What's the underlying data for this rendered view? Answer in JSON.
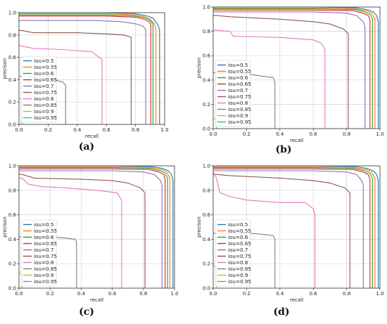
{
  "chart_data": [
    {
      "type": "line",
      "caption": "(a)",
      "xlabel": "recall",
      "ylabel": "precison",
      "xlim": [
        0,
        1
      ],
      "ylim": [
        0,
        1
      ],
      "grid": true,
      "legend": "lower-left",
      "x_ticks": [
        "0.0",
        "0.2",
        "0.4",
        "0.6",
        "0.8",
        "1.0"
      ],
      "y_ticks": [
        "0.0",
        "0.2",
        "0.4",
        "0.6",
        "0.8",
        "1.0"
      ],
      "series": [
        {
          "name": "iou=0.5",
          "color": "#1f77b4",
          "x": [
            0,
            0.02,
            0.6,
            0.8,
            0.88,
            0.92,
            0.95,
            0.965,
            0.965
          ],
          "y": [
            1.0,
            1.0,
            1.0,
            0.99,
            0.97,
            0.95,
            0.9,
            0.85,
            0
          ]
        },
        {
          "name": "iou=0.55",
          "color": "#ff7f0e",
          "x": [
            0,
            0.02,
            0.6,
            0.8,
            0.87,
            0.9,
            0.93,
            0.94,
            0.94
          ],
          "y": [
            0.99,
            0.99,
            0.99,
            0.98,
            0.96,
            0.94,
            0.9,
            0.85,
            0
          ]
        },
        {
          "name": "iou=0.6",
          "color": "#2ca02c",
          "x": [
            0,
            0.02,
            0.6,
            0.8,
            0.87,
            0.9,
            0.92,
            0.92
          ],
          "y": [
            0.98,
            0.98,
            0.98,
            0.97,
            0.95,
            0.93,
            0.9,
            0
          ]
        },
        {
          "name": "iou=0.65",
          "color": "#d62728",
          "x": [
            0,
            0.02,
            0.6,
            0.8,
            0.86,
            0.89,
            0.905,
            0.905
          ],
          "y": [
            0.97,
            0.97,
            0.97,
            0.96,
            0.94,
            0.92,
            0.9,
            0
          ]
        },
        {
          "name": "iou=0.7",
          "color": "#9467bd",
          "x": [
            0,
            0.02,
            0.5,
            0.7,
            0.8,
            0.85,
            0.87,
            0.87
          ],
          "y": [
            0.93,
            0.93,
            0.93,
            0.92,
            0.9,
            0.88,
            0.85,
            0
          ]
        },
        {
          "name": "iou=0.75",
          "color": "#8c564b",
          "x": [
            0,
            0.02,
            0.1,
            0.4,
            0.6,
            0.72,
            0.77,
            0.77
          ],
          "y": [
            0.84,
            0.84,
            0.82,
            0.82,
            0.81,
            0.8,
            0.78,
            0
          ]
        },
        {
          "name": "iou=0.8",
          "color": "#e377c2",
          "x": [
            0,
            0.02,
            0.1,
            0.3,
            0.5,
            0.57,
            0.57
          ],
          "y": [
            0.71,
            0.7,
            0.68,
            0.67,
            0.65,
            0.58,
            0
          ]
        },
        {
          "name": "iou=0.85",
          "color": "#7f7f7f",
          "x": [
            0,
            0.18,
            0.3,
            0.32,
            0.32
          ],
          "y": [
            0.43,
            0.42,
            0.38,
            0.35,
            0
          ]
        },
        {
          "name": "iou=0.9",
          "color": "#bcbd22",
          "x": [
            0,
            0.02,
            0.02
          ],
          "y": [
            0.23,
            0.23,
            0
          ]
        },
        {
          "name": "iou=0.95",
          "color": "#17becf",
          "x": [],
          "y": []
        }
      ]
    },
    {
      "type": "line",
      "caption": "(b)",
      "xlabel": "recall",
      "ylabel": "precison",
      "xlim": [
        0,
        1
      ],
      "ylim": [
        0,
        1
      ],
      "grid": true,
      "legend": "lower-left",
      "x_ticks": [
        "0.0",
        "0.2",
        "0.4",
        "0.6",
        "0.8",
        "1.0"
      ],
      "y_ticks": [
        "0.0",
        "0.2",
        "0.4",
        "0.6",
        "0.8",
        "1.0"
      ],
      "series": [
        {
          "name": "iou=0.5",
          "color": "#1f77b4",
          "x": [
            0,
            0.02,
            0.6,
            0.85,
            0.92,
            0.96,
            0.98,
            0.99,
            0.99
          ],
          "y": [
            1.0,
            1.0,
            1.0,
            0.995,
            0.98,
            0.96,
            0.93,
            0.88,
            0
          ]
        },
        {
          "name": "iou=0.55",
          "color": "#ff7f0e",
          "x": [
            0,
            0.02,
            0.6,
            0.85,
            0.92,
            0.95,
            0.97,
            0.97
          ],
          "y": [
            0.99,
            0.99,
            0.99,
            0.985,
            0.97,
            0.95,
            0.9,
            0
          ]
        },
        {
          "name": "iou=0.6",
          "color": "#2ca02c",
          "x": [
            0,
            0.02,
            0.6,
            0.85,
            0.91,
            0.94,
            0.955,
            0.955
          ],
          "y": [
            0.985,
            0.985,
            0.985,
            0.98,
            0.96,
            0.94,
            0.9,
            0
          ]
        },
        {
          "name": "iou=0.65",
          "color": "#d62728",
          "x": [
            0,
            0.02,
            0.6,
            0.84,
            0.9,
            0.93,
            0.94,
            0.94
          ],
          "y": [
            0.975,
            0.975,
            0.975,
            0.97,
            0.95,
            0.93,
            0.89,
            0
          ]
        },
        {
          "name": "iou=0.7",
          "color": "#9467bd",
          "x": [
            0,
            0.02,
            0.6,
            0.8,
            0.86,
            0.9,
            0.91,
            0.91
          ],
          "y": [
            0.96,
            0.96,
            0.96,
            0.95,
            0.93,
            0.88,
            0.84,
            0
          ]
        },
        {
          "name": "iou=0.75",
          "color": "#8c564b",
          "x": [
            0,
            0.02,
            0.1,
            0.4,
            0.6,
            0.7,
            0.78,
            0.81,
            0.81
          ],
          "y": [
            0.93,
            0.93,
            0.92,
            0.9,
            0.88,
            0.86,
            0.82,
            0.78,
            0
          ]
        },
        {
          "name": "iou=0.8",
          "color": "#e377c2",
          "x": [
            0,
            0.02,
            0.1,
            0.12,
            0.4,
            0.6,
            0.65,
            0.67,
            0.67
          ],
          "y": [
            0.81,
            0.81,
            0.8,
            0.76,
            0.75,
            0.73,
            0.7,
            0.65,
            0
          ]
        },
        {
          "name": "iou=0.85",
          "color": "#7f7f7f",
          "x": [
            0,
            0.2,
            0.3,
            0.36,
            0.37,
            0.37
          ],
          "y": [
            0.46,
            0.45,
            0.43,
            0.42,
            0.38,
            0
          ]
        },
        {
          "name": "iou=0.9",
          "color": "#bcbd22",
          "x": [
            0,
            0.02,
            0.02
          ],
          "y": [
            0.08,
            0.08,
            0
          ]
        },
        {
          "name": "iou=0.95",
          "color": "#17becf",
          "x": [],
          "y": []
        }
      ]
    },
    {
      "type": "line",
      "caption": "(c)",
      "xlabel": "recall",
      "ylabel": "precison",
      "xlim": [
        0,
        1
      ],
      "ylim": [
        0,
        1
      ],
      "grid": true,
      "legend": "lower-left",
      "x_ticks": [
        "0.0",
        "0.2",
        "0.4",
        "0.6",
        "0.8",
        "1.0"
      ],
      "y_ticks": [
        "0.0",
        "0.2",
        "0.4",
        "0.6",
        "0.8",
        "1.0"
      ],
      "series": [
        {
          "name": "iou=0.5",
          "color": "#1f77b4",
          "x": [
            0,
            0.02,
            0.6,
            0.85,
            0.92,
            0.96,
            0.98,
            0.99,
            0.99
          ],
          "y": [
            1.0,
            1.0,
            1.0,
            0.995,
            0.98,
            0.96,
            0.93,
            0.88,
            0
          ]
        },
        {
          "name": "iou=0.55",
          "color": "#ff7f0e",
          "x": [
            0,
            0.02,
            0.6,
            0.85,
            0.92,
            0.95,
            0.97,
            0.97
          ],
          "y": [
            0.99,
            0.99,
            0.99,
            0.985,
            0.97,
            0.95,
            0.9,
            0
          ]
        },
        {
          "name": "iou=0.6",
          "color": "#2ca02c",
          "x": [
            0,
            0.02,
            0.6,
            0.84,
            0.91,
            0.94,
            0.955,
            0.955
          ],
          "y": [
            0.985,
            0.985,
            0.985,
            0.98,
            0.96,
            0.94,
            0.9,
            0
          ]
        },
        {
          "name": "iou=0.65",
          "color": "#d62728",
          "x": [
            0,
            0.02,
            0.6,
            0.84,
            0.9,
            0.93,
            0.94,
            0.94
          ],
          "y": [
            0.975,
            0.975,
            0.975,
            0.97,
            0.95,
            0.93,
            0.89,
            0
          ]
        },
        {
          "name": "iou=0.7",
          "color": "#9467bd",
          "x": [
            0,
            0.02,
            0.6,
            0.8,
            0.87,
            0.91,
            0.92,
            0.92
          ],
          "y": [
            0.96,
            0.96,
            0.96,
            0.95,
            0.93,
            0.88,
            0.84,
            0
          ]
        },
        {
          "name": "iou=0.75",
          "color": "#8c564b",
          "x": [
            0,
            0.02,
            0.1,
            0.4,
            0.6,
            0.7,
            0.78,
            0.81,
            0.81
          ],
          "y": [
            0.93,
            0.93,
            0.9,
            0.89,
            0.88,
            0.86,
            0.82,
            0.78,
            0
          ]
        },
        {
          "name": "iou=0.8",
          "color": "#e377c2",
          "x": [
            0,
            0.02,
            0.06,
            0.15,
            0.3,
            0.5,
            0.63,
            0.66,
            0.66
          ],
          "y": [
            0.9,
            0.9,
            0.85,
            0.83,
            0.82,
            0.8,
            0.78,
            0.72,
            0
          ]
        },
        {
          "name": "iou=0.85",
          "color": "#7f7f7f",
          "x": [
            0,
            0.2,
            0.3,
            0.36,
            0.37,
            0.37
          ],
          "y": [
            0.42,
            0.42,
            0.41,
            0.4,
            0.38,
            0
          ]
        },
        {
          "name": "iou=0.9",
          "color": "#bcbd22",
          "x": [
            0,
            0.02,
            0.02
          ],
          "y": [
            0.12,
            0.12,
            0
          ]
        },
        {
          "name": "iou=0.95",
          "color": "#17becf",
          "x": [],
          "y": []
        }
      ]
    },
    {
      "type": "line",
      "caption": "(d)",
      "xlabel": "recall",
      "ylabel": "precison",
      "xlim": [
        0,
        1
      ],
      "ylim": [
        0,
        1
      ],
      "grid": true,
      "legend": "lower-left",
      "x_ticks": [
        "0.0",
        "0.2",
        "0.4",
        "0.6",
        "0.8",
        "1.0"
      ],
      "y_ticks": [
        "0.0",
        "0.2",
        "0.4",
        "0.6",
        "0.8",
        "1.0"
      ],
      "series": [
        {
          "name": "iou=0.5",
          "color": "#1f77b4",
          "x": [
            0,
            0.02,
            0.6,
            0.85,
            0.92,
            0.96,
            0.98,
            0.99,
            0.99
          ],
          "y": [
            1.0,
            1.0,
            1.0,
            0.995,
            0.98,
            0.96,
            0.93,
            0.88,
            0
          ]
        },
        {
          "name": "iou=0.55",
          "color": "#ff7f0e",
          "x": [
            0,
            0.02,
            0.6,
            0.85,
            0.92,
            0.95,
            0.97,
            0.97
          ],
          "y": [
            0.99,
            0.99,
            0.99,
            0.985,
            0.97,
            0.95,
            0.9,
            0
          ]
        },
        {
          "name": "iou=0.6",
          "color": "#2ca02c",
          "x": [
            0,
            0.02,
            0.6,
            0.84,
            0.91,
            0.94,
            0.955,
            0.955
          ],
          "y": [
            0.985,
            0.985,
            0.985,
            0.98,
            0.96,
            0.94,
            0.9,
            0
          ]
        },
        {
          "name": "iou=0.65",
          "color": "#d62728",
          "x": [
            0,
            0.02,
            0.6,
            0.84,
            0.9,
            0.93,
            0.94,
            0.94
          ],
          "y": [
            0.975,
            0.975,
            0.975,
            0.97,
            0.95,
            0.93,
            0.89,
            0
          ]
        },
        {
          "name": "iou=0.7",
          "color": "#9467bd",
          "x": [
            0,
            0.02,
            0.6,
            0.8,
            0.86,
            0.89,
            0.9,
            0.9
          ],
          "y": [
            0.96,
            0.96,
            0.96,
            0.95,
            0.93,
            0.88,
            0.84,
            0
          ]
        },
        {
          "name": "iou=0.75",
          "color": "#8c564b",
          "x": [
            0,
            0.02,
            0.1,
            0.4,
            0.6,
            0.7,
            0.79,
            0.82,
            0.82
          ],
          "y": [
            0.93,
            0.93,
            0.92,
            0.9,
            0.88,
            0.86,
            0.82,
            0.78,
            0
          ]
        },
        {
          "name": "iou=0.8",
          "color": "#e377c2",
          "x": [
            0,
            0.02,
            0.04,
            0.1,
            0.2,
            0.4,
            0.55,
            0.6,
            0.61,
            0.61
          ],
          "y": [
            0.95,
            0.9,
            0.78,
            0.75,
            0.72,
            0.7,
            0.7,
            0.65,
            0.6,
            0
          ]
        },
        {
          "name": "iou=0.85",
          "color": "#7f7f7f",
          "x": [
            0,
            0.2,
            0.3,
            0.36,
            0.37,
            0.37
          ],
          "y": [
            0.45,
            0.45,
            0.44,
            0.43,
            0.4,
            0
          ]
        },
        {
          "name": "iou=0.9",
          "color": "#bcbd22",
          "x": [
            0,
            0.02,
            0.02
          ],
          "y": [
            0.18,
            0.18,
            0
          ]
        },
        {
          "name": "iou=0.95",
          "color": "#17becf",
          "x": [],
          "y": []
        }
      ]
    }
  ]
}
